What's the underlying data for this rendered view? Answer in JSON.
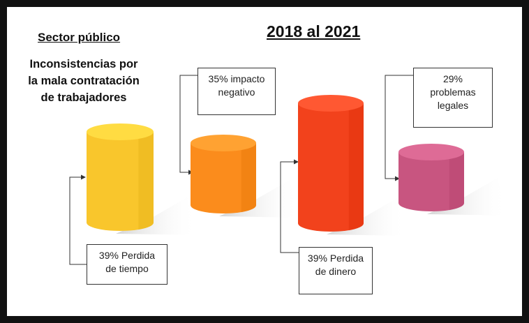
{
  "header": {
    "sector": "Sector público",
    "period": "2018 al 2021",
    "subtitle_lines": [
      "Inconsistencias por",
      "la mala contratación",
      "de trabajadores"
    ]
  },
  "chart_data": {
    "type": "bar",
    "title": "2018 al 2021",
    "categories": [
      "Perdida de tiempo",
      "impacto negativo",
      "Perdida de dinero",
      "problemas legales"
    ],
    "values": [
      39,
      35,
      39,
      29
    ],
    "unit": "%",
    "colors": [
      "#f9c62c",
      "#fb8c1c",
      "#f2421c",
      "#c85580"
    ],
    "grid": false,
    "legend": "none"
  },
  "callouts": [
    {
      "lines": [
        "39% Perdida",
        "de tiempo"
      ]
    },
    {
      "lines": [
        "35% impacto",
        "negativo"
      ]
    },
    {
      "lines": [
        "39% Perdida",
        "de dinero"
      ]
    },
    {
      "lines": [
        "29%",
        "problemas",
        "legales"
      ]
    }
  ]
}
